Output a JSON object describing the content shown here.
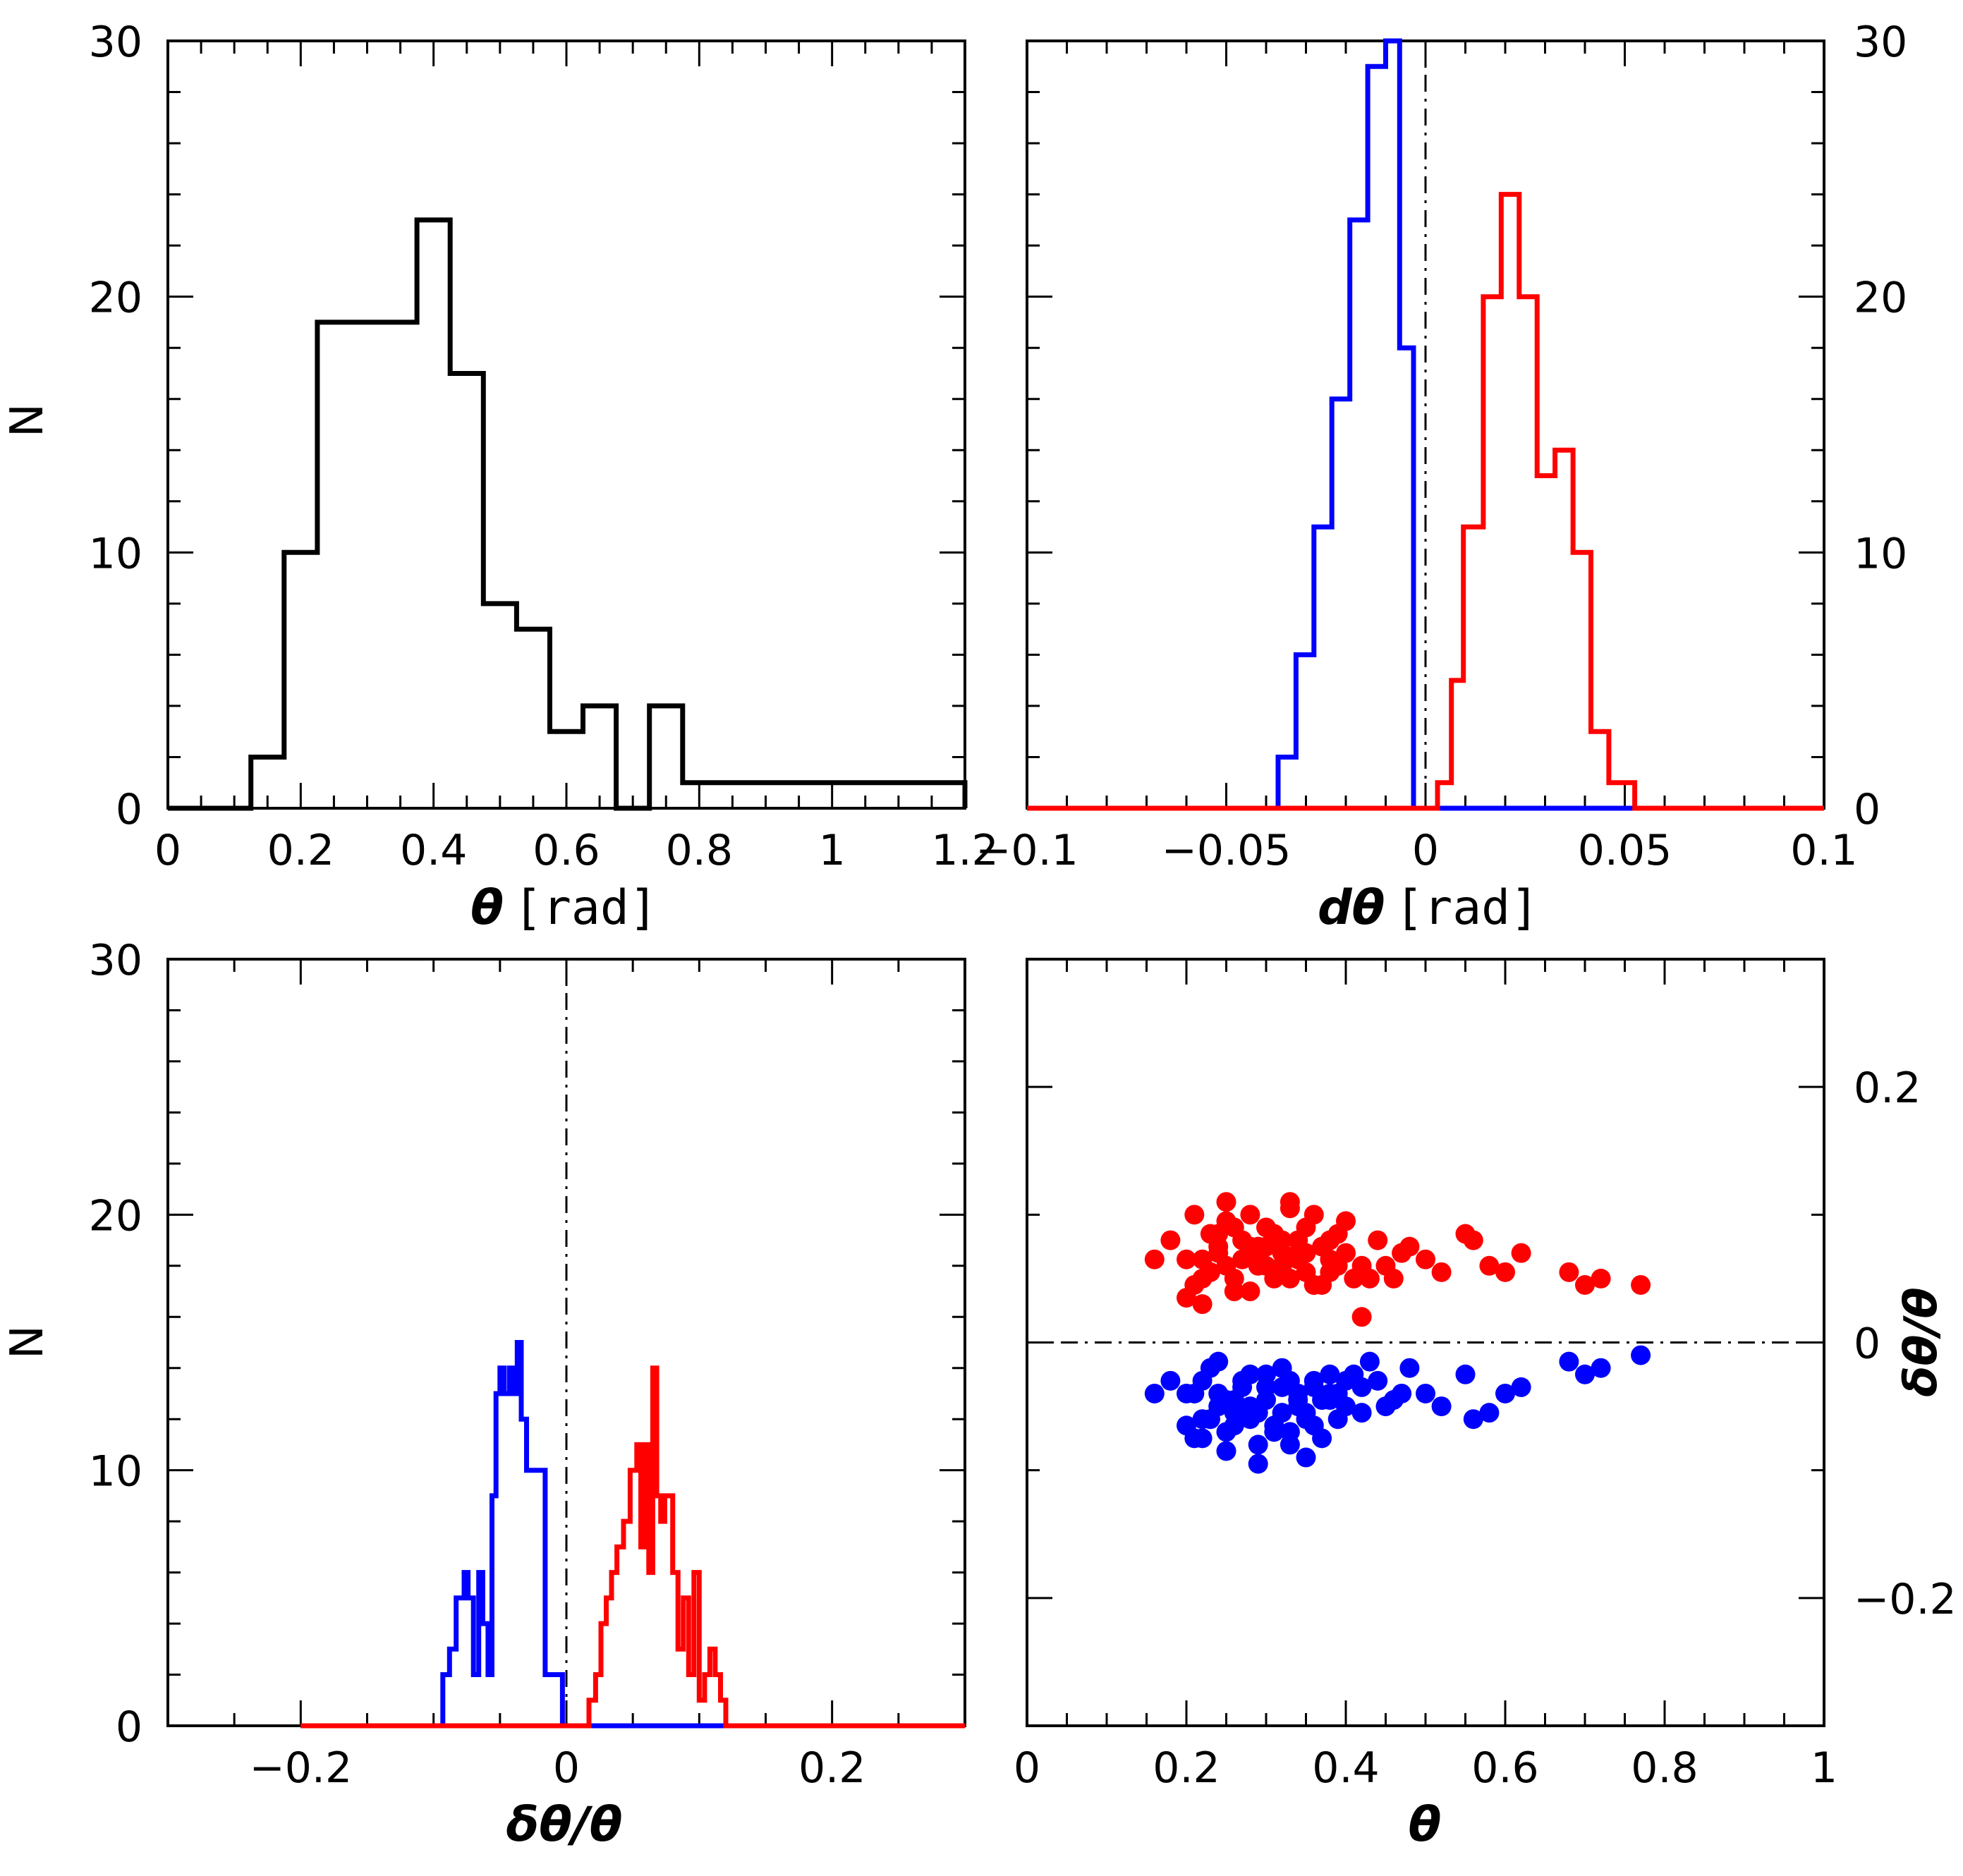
{
  "colors": {
    "black": "#000000",
    "blue": "#0000ff",
    "red": "#ff0000"
  },
  "chart_data": [
    {
      "id": "p1",
      "type": "histogram",
      "xlabel_sym": "θ",
      "xlabel_unit": "[rad]",
      "ylabel": "N",
      "xlim": [
        0,
        1.2
      ],
      "ylim": [
        0,
        30
      ],
      "xticks": [
        0,
        0.2,
        0.4,
        0.6,
        0.8,
        1,
        1.2
      ],
      "xtick_labels": [
        "0",
        "0.2",
        "0.4",
        "0.6",
        "0.8",
        "1",
        "1.2"
      ],
      "yticks": [
        0,
        10,
        20,
        30
      ],
      "ytick_labels": [
        "0",
        "10",
        "20",
        "30"
      ],
      "series": [
        {
          "name": "theta",
          "color": "#000000",
          "edges": [
            0,
            0.125,
            0.175,
            0.225,
            0.3,
            0.375,
            0.425,
            0.475,
            0.525,
            0.575,
            0.625,
            0.675,
            0.725,
            0.775,
            1.2
          ],
          "counts": [
            0,
            2,
            10,
            19,
            19,
            23,
            17,
            8,
            7,
            3,
            4,
            0,
            4,
            1,
            0
          ]
        }
      ]
    },
    {
      "id": "p2",
      "type": "histogram",
      "xlabel_sym": "dθ",
      "xlabel_unit": "[rad]",
      "ylabel": "",
      "xlim": [
        -0.1,
        0.1
      ],
      "ylim": [
        0,
        30
      ],
      "xticks": [
        -0.1,
        -0.05,
        0,
        0.05,
        0.1
      ],
      "xtick_labels": [
        "−0.1",
        "−0.05",
        "0",
        "0.05",
        "0.1"
      ],
      "yticks": [
        0,
        10,
        20,
        30
      ],
      "ytick_labels": [
        "0",
        "10",
        "20",
        "30"
      ],
      "reference_line_x": 0,
      "series": [
        {
          "name": "blue",
          "color": "#0000ff",
          "edges": [
            -0.1,
            -0.037,
            -0.0325,
            -0.028,
            -0.0235,
            -0.019,
            -0.0145,
            -0.01,
            -0.0065,
            -0.003,
            0.1
          ],
          "counts": [
            0,
            2,
            6,
            11,
            16,
            23,
            29,
            30,
            18,
            0,
            0
          ]
        },
        {
          "name": "red",
          "color": "#ff0000",
          "edges": [
            -0.1,
            0,
            0.003,
            0.0065,
            0.0095,
            0.0145,
            0.019,
            0.0235,
            0.028,
            0.0325,
            0.037,
            0.0415,
            0.046,
            0.0525,
            0.1
          ],
          "counts": [
            0,
            0,
            1,
            5,
            11,
            20,
            24,
            20,
            13,
            14,
            10,
            3,
            1,
            0,
            0
          ]
        }
      ]
    },
    {
      "id": "p3",
      "type": "histogram",
      "xlabel_sym": "δθ/θ",
      "ylabel": "N",
      "xlim": [
        -0.3,
        0.3
      ],
      "ylim": [
        0,
        30
      ],
      "xticks": [
        -0.2,
        0,
        0.2
      ],
      "xtick_labels": [
        "−0.2",
        "0",
        "0.2"
      ],
      "yticks": [
        0,
        10,
        20,
        30
      ],
      "ytick_labels": [
        "0",
        "10",
        "20",
        "30"
      ],
      "reference_line_x": 0,
      "series": [
        {
          "name": "blue",
          "color": "#0000ff",
          "edges": [
            -0.2,
            -0.093,
            -0.088,
            -0.083,
            -0.077,
            -0.074,
            -0.07,
            -0.066,
            -0.063,
            -0.059,
            -0.056,
            -0.053,
            -0.05,
            -0.047,
            -0.043,
            -0.04,
            -0.037,
            -0.034,
            -0.03,
            -0.016,
            -0.003,
            0.2
          ],
          "counts": [
            0,
            2,
            3,
            5,
            6,
            5,
            2,
            6,
            4,
            2,
            9,
            13,
            14,
            13,
            14,
            13,
            15,
            12,
            10,
            2,
            0,
            0
          ]
        },
        {
          "name": "red",
          "color": "#ff0000",
          "edges": [
            -0.2,
            0.017,
            0.022,
            0.026,
            0.03,
            0.034,
            0.038,
            0.043,
            0.048,
            0.053,
            0.056,
            0.059,
            0.062,
            0.065,
            0.068,
            0.071,
            0.074,
            0.077,
            0.08,
            0.084,
            0.088,
            0.092,
            0.096,
            0.1,
            0.104,
            0.108,
            0.112,
            0.116,
            0.12,
            0.2
          ],
          "counts": [
            0,
            1,
            2,
            4,
            5,
            6,
            7,
            8,
            10,
            11,
            7,
            11,
            6,
            14,
            9,
            8,
            9,
            9,
            6,
            3,
            5,
            2,
            6,
            1,
            2,
            3,
            2,
            1,
            0,
            0
          ]
        }
      ]
    },
    {
      "id": "p4",
      "type": "scatter",
      "xlabel_sym": "θ",
      "ylabel": "δθ/θ",
      "xlim": [
        0,
        1
      ],
      "ylim": [
        -0.3,
        0.3
      ],
      "xticks": [
        0,
        0.2,
        0.4,
        0.6,
        0.8,
        1
      ],
      "xtick_labels": [
        "0",
        "0.2",
        "0.4",
        "0.6",
        "0.8",
        "1"
      ],
      "yticks": [
        -0.2,
        0,
        0.2
      ],
      "ytick_labels": [
        "−0.2",
        "0",
        "0.2"
      ],
      "reference_line_y": 0,
      "series": [
        {
          "name": "red",
          "color": "#ff0000",
          "x": [
            0.2,
            0.21,
            0.22,
            0.23,
            0.24,
            0.25,
            0.26,
            0.27,
            0.28,
            0.29,
            0.3,
            0.31,
            0.32,
            0.33,
            0.34,
            0.35,
            0.36,
            0.37,
            0.38,
            0.39,
            0.4,
            0.42,
            0.44,
            0.46,
            0.48,
            0.5,
            0.52,
            0.55,
            0.56,
            0.58,
            0.6,
            0.62,
            0.68,
            0.7,
            0.72,
            0.77,
            0.2,
            0.22,
            0.24,
            0.26,
            0.28,
            0.3,
            0.32,
            0.34,
            0.36,
            0.38,
            0.4,
            0.21,
            0.23,
            0.25,
            0.27,
            0.29,
            0.31,
            0.33,
            0.35,
            0.37,
            0.39,
            0.41,
            0.43,
            0.45,
            0.22,
            0.24,
            0.26,
            0.28,
            0.3,
            0.32,
            0.34,
            0.36,
            0.38,
            0.18,
            0.16,
            0.25,
            0.33,
            0.42,
            0.47,
            0.29,
            0.35,
            0.23
          ],
          "y": [
            0.065,
            0.1,
            0.05,
            0.085,
            0.07,
            0.095,
            0.04,
            0.08,
            0.075,
            0.06,
            0.09,
            0.05,
            0.08,
            0.11,
            0.065,
            0.07,
            0.1,
            0.045,
            0.055,
            0.085,
            0.095,
            0.06,
            0.08,
            0.05,
            0.075,
            0.065,
            0.055,
            0.085,
            0.08,
            0.06,
            0.055,
            0.07,
            0.055,
            0.045,
            0.05,
            0.045,
            0.035,
            0.03,
            0.075,
            0.09,
            0.1,
            0.06,
            0.07,
            0.08,
            0.045,
            0.065,
            0.07,
            0.045,
            0.055,
            0.06,
            0.065,
            0.07,
            0.085,
            0.05,
            0.055,
            0.075,
            0.06,
            0.05,
            0.05,
            0.06,
            0.065,
            0.085,
            0.05,
            0.04,
            0.075,
            0.06,
            0.07,
            0.045,
            0.08,
            0.08,
            0.065,
            0.11,
            0.105,
            0.02,
            0.07,
            0.075,
            0.09,
            0.055
          ]
        },
        {
          "name": "blue",
          "color": "#0000ff",
          "x": [
            0.2,
            0.21,
            0.22,
            0.23,
            0.24,
            0.25,
            0.26,
            0.27,
            0.28,
            0.29,
            0.3,
            0.31,
            0.32,
            0.33,
            0.34,
            0.35,
            0.36,
            0.37,
            0.38,
            0.39,
            0.4,
            0.42,
            0.44,
            0.46,
            0.48,
            0.5,
            0.52,
            0.55,
            0.56,
            0.58,
            0.6,
            0.62,
            0.68,
            0.7,
            0.72,
            0.77,
            0.2,
            0.22,
            0.24,
            0.26,
            0.28,
            0.3,
            0.32,
            0.34,
            0.36,
            0.38,
            0.4,
            0.21,
            0.23,
            0.25,
            0.27,
            0.29,
            0.31,
            0.33,
            0.35,
            0.37,
            0.39,
            0.41,
            0.43,
            0.45,
            0.22,
            0.24,
            0.26,
            0.28,
            0.3,
            0.32,
            0.34,
            0.36,
            0.38,
            0.18,
            0.16,
            0.25,
            0.33,
            0.42,
            0.47,
            0.29,
            0.35,
            0.23
          ],
          "y": [
            -0.065,
            -0.04,
            -0.075,
            -0.02,
            -0.05,
            -0.07,
            -0.055,
            -0.03,
            -0.06,
            -0.08,
            -0.045,
            -0.065,
            -0.035,
            -0.07,
            -0.04,
            -0.055,
            -0.03,
            -0.075,
            -0.045,
            -0.06,
            -0.05,
            -0.035,
            -0.03,
            -0.045,
            -0.02,
            -0.04,
            -0.05,
            -0.025,
            -0.06,
            -0.055,
            -0.04,
            -0.035,
            -0.015,
            -0.025,
            -0.02,
            -0.01,
            -0.04,
            -0.06,
            -0.015,
            -0.045,
            -0.05,
            -0.025,
            -0.055,
            -0.05,
            -0.035,
            -0.04,
            -0.03,
            -0.075,
            -0.06,
            -0.045,
            -0.035,
            -0.055,
            -0.07,
            -0.03,
            -0.06,
            -0.045,
            -0.04,
            -0.025,
            -0.015,
            -0.05,
            -0.03,
            -0.04,
            -0.065,
            -0.025,
            -0.035,
            -0.02,
            -0.045,
            -0.065,
            -0.025,
            -0.03,
            -0.04,
            -0.085,
            -0.08,
            -0.055,
            -0.04,
            -0.095,
            -0.09,
            -0.06
          ]
        }
      ]
    }
  ]
}
